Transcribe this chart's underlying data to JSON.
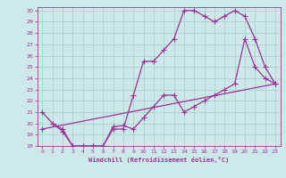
{
  "xlabel": "Windchill (Refroidissement éolien,°C)",
  "bg_color": "#cce8e8",
  "line_color": "#993399",
  "grid_color": "#aacccc",
  "xlim": [
    -0.5,
    23.5
  ],
  "ylim": [
    18,
    30.3
  ],
  "xticks": [
    0,
    1,
    2,
    3,
    4,
    5,
    6,
    7,
    8,
    9,
    10,
    11,
    12,
    13,
    14,
    15,
    16,
    17,
    18,
    19,
    20,
    21,
    22,
    23
  ],
  "yticks": [
    18,
    19,
    20,
    21,
    22,
    23,
    24,
    25,
    26,
    27,
    28,
    29,
    30
  ],
  "line1_x": [
    1,
    2,
    3,
    4,
    5,
    6,
    7,
    8,
    9,
    10,
    11,
    12,
    13,
    14,
    15,
    16,
    17,
    18,
    19,
    20,
    21,
    22,
    23
  ],
  "line1_y": [
    20.0,
    19.5,
    18.0,
    18.0,
    18.0,
    18.0,
    19.5,
    19.5,
    22.5,
    25.5,
    25.5,
    26.5,
    27.5,
    30.0,
    30.0,
    29.5,
    29.0,
    29.5,
    30.0,
    29.5,
    27.5,
    25.0,
    23.5
  ],
  "line2_x": [
    0,
    1,
    2,
    3,
    4,
    5,
    6,
    7,
    8,
    9,
    10,
    11,
    12,
    13,
    14,
    15,
    16,
    17,
    18,
    19,
    20,
    21,
    22,
    23
  ],
  "line2_y": [
    21.0,
    20.0,
    19.3,
    18.0,
    18.0,
    18.0,
    18.0,
    19.7,
    19.8,
    19.5,
    20.5,
    21.5,
    22.5,
    22.5,
    21.0,
    21.5,
    22.0,
    22.5,
    23.0,
    23.5,
    27.5,
    25.0,
    24.0,
    23.5
  ],
  "line3_x": [
    0,
    23
  ],
  "line3_y": [
    19.5,
    23.5
  ]
}
